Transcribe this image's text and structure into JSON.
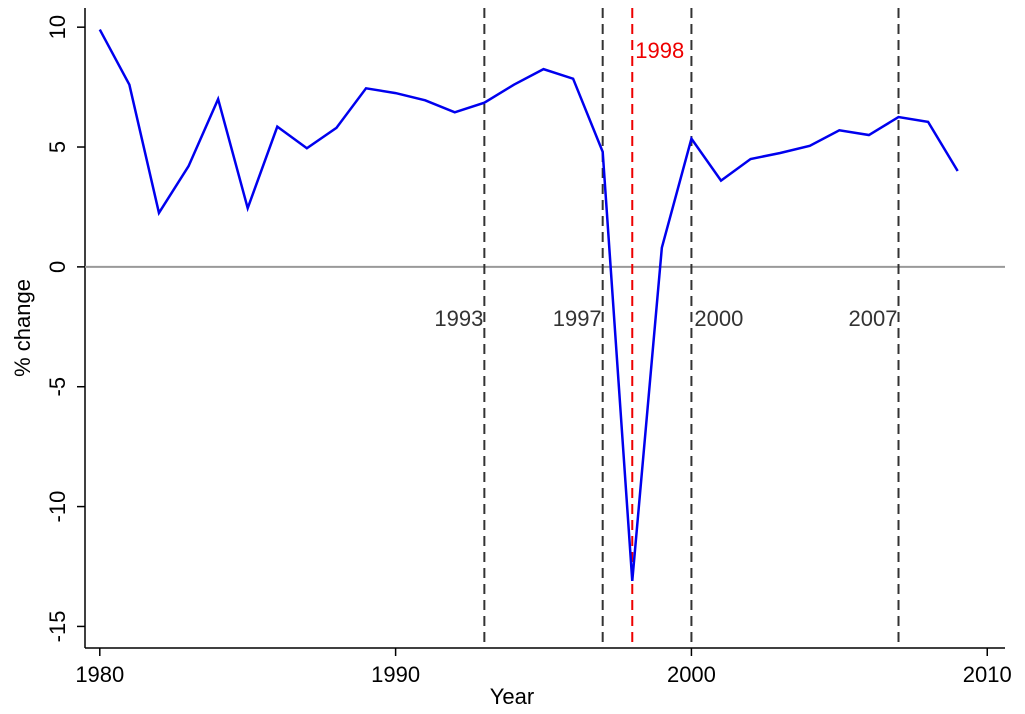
{
  "chart_data": {
    "type": "line",
    "x_label": "Year",
    "y_label": "% change",
    "x": [
      1980,
      1981,
      1982,
      1983,
      1984,
      1985,
      1986,
      1987,
      1988,
      1989,
      1990,
      1991,
      1992,
      1993,
      1994,
      1995,
      1996,
      1997,
      1998,
      1999,
      2000,
      2001,
      2002,
      2003,
      2004,
      2005,
      2006,
      2007,
      2008,
      2009
    ],
    "series": [
      {
        "color": "#0000ee",
        "values": [
          9.9,
          7.6,
          2.25,
          4.2,
          7.0,
          2.45,
          5.85,
          4.95,
          5.8,
          7.45,
          7.25,
          6.95,
          6.45,
          6.85,
          7.6,
          8.25,
          7.85,
          4.8,
          -13.1,
          0.8,
          5.35,
          3.6,
          4.5,
          4.75,
          5.05,
          5.7,
          5.5,
          6.25,
          6.05,
          4.0
        ]
      }
    ],
    "xlim": [
      1979.5,
      2010.6
    ],
    "ylim": [
      -15.9,
      10.8
    ],
    "xticks": [
      1980,
      1990,
      2000,
      2010
    ],
    "yticks": [
      -15,
      -10,
      -5,
      0,
      5,
      10
    ],
    "reference_line": {
      "y": 0,
      "color": "#999999"
    },
    "event_lines": [
      {
        "x": 1993,
        "color": "#333333"
      },
      {
        "x": 1997,
        "color": "#333333"
      },
      {
        "x": 1998,
        "color": "#ee0000"
      },
      {
        "x": 2000,
        "color": "#333333"
      },
      {
        "x": 2007,
        "color": "#333333"
      }
    ]
  }
}
